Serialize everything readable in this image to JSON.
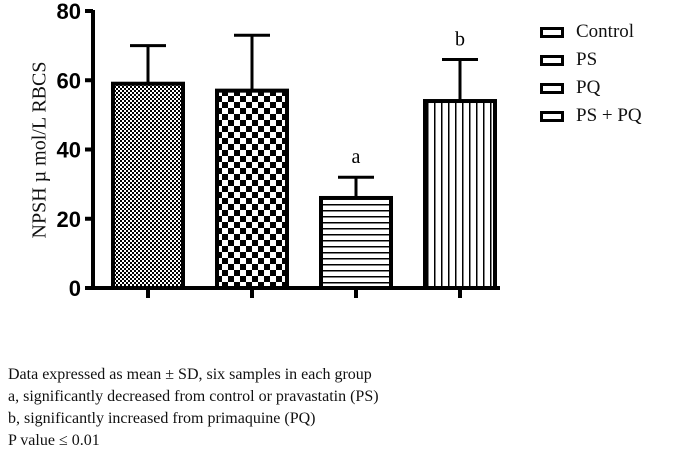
{
  "chart_data": {
    "type": "bar",
    "title": "",
    "xlabel": "",
    "ylabel": "NPSH µ mol/L RBCS",
    "ylim": [
      0,
      80
    ],
    "yticks": [
      0,
      20,
      40,
      60,
      80
    ],
    "grid": false,
    "legend_position": "right",
    "categories": [
      "Control",
      "PS",
      "PQ",
      "PS + PQ"
    ],
    "values": [
      59,
      57,
      26,
      54
    ],
    "error_sd": [
      11,
      16,
      6,
      12
    ],
    "annotations": [
      {
        "category": "PQ",
        "text": "a"
      },
      {
        "category": "PS + PQ",
        "text": "b"
      }
    ],
    "patterns": [
      "fine-checker",
      "coarse-checker",
      "horizontal-lines",
      "vertical-lines"
    ]
  },
  "legend": [
    "Control",
    "PS",
    "PQ",
    "PS + PQ"
  ],
  "notes": [
    "Data expressed as mean ± SD, six samples in each group",
    "a, significantly decreased from control or pravastatin (PS)",
    "b, significantly increased  from primaquine (PQ)",
    "P value ≤ 0.01"
  ]
}
